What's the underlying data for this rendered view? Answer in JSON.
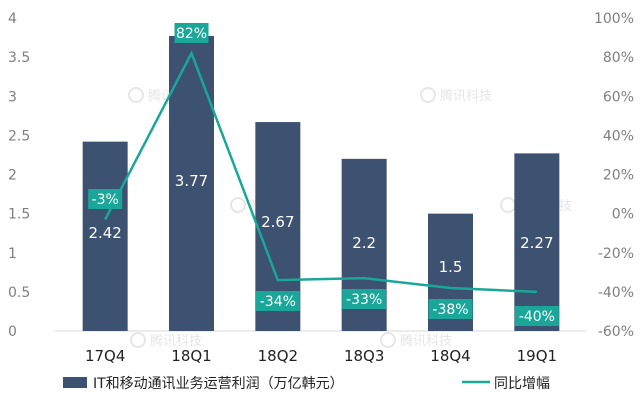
{
  "chart_data": {
    "type": "bar",
    "categories": [
      "17Q4",
      "18Q1",
      "18Q2",
      "18Q3",
      "18Q4",
      "19Q1"
    ],
    "series": [
      {
        "name": "IT和移动通讯业务运营利润（万亿韩元）",
        "type": "bar",
        "axis": "left",
        "values": [
          2.42,
          3.77,
          2.67,
          2.2,
          1.5,
          2.27
        ],
        "labels": [
          "2.42",
          "3.77",
          "2.67",
          "2.2",
          "1.5",
          "2.27"
        ]
      },
      {
        "name": "同比增幅",
        "type": "line",
        "axis": "right",
        "values": [
          -3,
          82,
          -34,
          -33,
          -38,
          -40
        ],
        "labels": [
          "-3%",
          "82%",
          "-34%",
          "-33%",
          "-38%",
          "-40%"
        ]
      }
    ],
    "y_left": {
      "ylim": [
        0,
        4
      ],
      "ticks": [
        0,
        0.5,
        1,
        1.5,
        2,
        2.5,
        3,
        3.5,
        4
      ],
      "tick_labels": [
        "0",
        "0.5",
        "1",
        "1.5",
        "2",
        "2.5",
        "3",
        "3.5",
        "4"
      ]
    },
    "y_right": {
      "ylim": [
        -60,
        100
      ],
      "ticks": [
        -60,
        -40,
        -20,
        0,
        20,
        40,
        60,
        80,
        100
      ],
      "tick_labels": [
        "-60%",
        "-40%",
        "-20%",
        "0%",
        "20%",
        "40%",
        "60%",
        "80%",
        "100%"
      ]
    },
    "grid": false,
    "legend_position": "bottom",
    "watermark": "腾讯科技"
  },
  "colors": {
    "bar": "#3d5170",
    "line": "#1aa79a",
    "label_box": "#1aa79a",
    "axis": "#d9d9d9"
  }
}
